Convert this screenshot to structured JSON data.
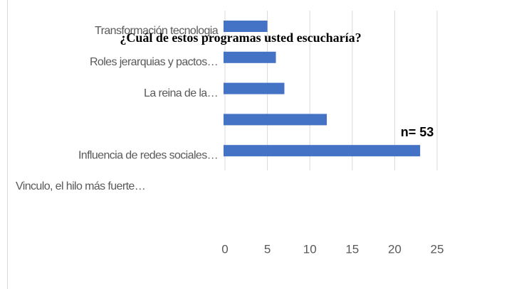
{
  "chart_data": {
    "type": "bar",
    "orientation": "horizontal",
    "title": "¿Cuál de estos programas usted escucharía?",
    "annotation": "n= 53",
    "categories": [
      "Transformación tecnologia",
      "Roles jerarquias y pactos…",
      "La reina de la…",
      null,
      "Influencia de redes sociales…",
      "Vinculo, el hilo más fuerte…"
    ],
    "values": [
      5,
      6,
      7,
      12,
      23,
      0
    ],
    "color": "#4472c4",
    "xlim": [
      0,
      25
    ],
    "xticks": [
      0,
      5,
      10,
      15,
      20,
      25
    ],
    "grid": true
  }
}
